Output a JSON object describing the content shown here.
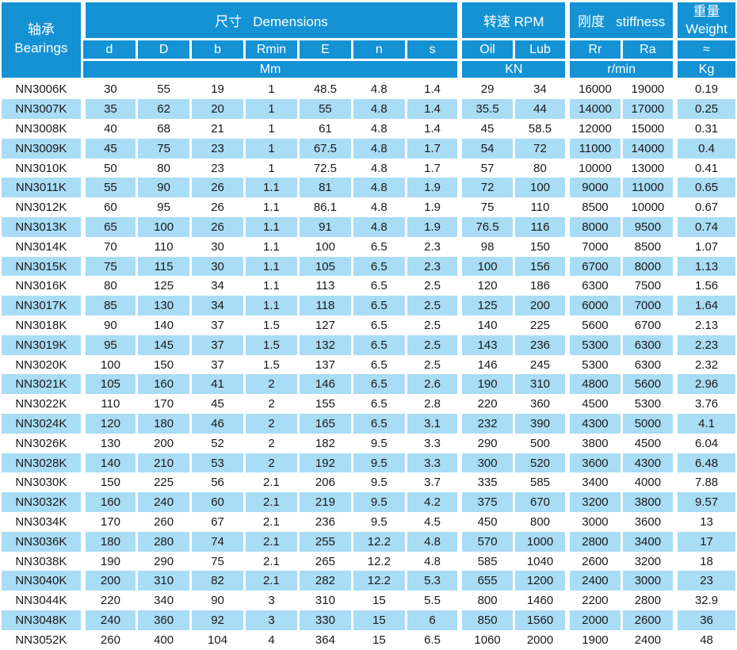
{
  "colors": {
    "header_blue": "#1492d4",
    "stripe_blue": "#a9dcf5",
    "text_dark": "#1a1a1a"
  },
  "table": {
    "bearing_header": {
      "zh": "轴承",
      "en": "Bearings"
    },
    "groups": {
      "dimensions": {
        "zh": "尺寸",
        "en": "Demensions",
        "unit": "Mm"
      },
      "rpm": {
        "zh": "转速",
        "en": "RPM",
        "unit": "KN"
      },
      "stiffness": {
        "zh": "刚度",
        "en": "stiffness",
        "unit": "r/min"
      },
      "weight": {
        "zh": "重量",
        "en": "Weight",
        "approx_symbol": "≈",
        "unit": "Kg"
      }
    },
    "columns": [
      "d",
      "D",
      "b",
      "Rmin",
      "E",
      "n",
      "s",
      "Oil",
      "Lub",
      "Rr",
      "Ra",
      "≈"
    ],
    "rows": [
      {
        "bearing": "NN3006K",
        "values": [
          "30",
          "55",
          "19",
          "1",
          "48.5",
          "4.8",
          "1.4",
          "29",
          "34",
          "16000",
          "19000",
          "0.19"
        ]
      },
      {
        "bearing": "NN3007K",
        "values": [
          "35",
          "62",
          "20",
          "1",
          "55",
          "4.8",
          "1.4",
          "35.5",
          "44",
          "14000",
          "17000",
          "0.25"
        ]
      },
      {
        "bearing": "NN3008K",
        "values": [
          "40",
          "68",
          "21",
          "1",
          "61",
          "4.8",
          "1.4",
          "45",
          "58.5",
          "12000",
          "15000",
          "0.31"
        ]
      },
      {
        "bearing": "NN3009K",
        "values": [
          "45",
          "75",
          "23",
          "1",
          "67.5",
          "4.8",
          "1.7",
          "54",
          "72",
          "11000",
          "14000",
          "0.4"
        ]
      },
      {
        "bearing": "NN3010K",
        "values": [
          "50",
          "80",
          "23",
          "1",
          "72.5",
          "4.8",
          "1.7",
          "57",
          "80",
          "10000",
          "13000",
          "0.41"
        ]
      },
      {
        "bearing": "NN3011K",
        "values": [
          "55",
          "90",
          "26",
          "1.1",
          "81",
          "4.8",
          "1.9",
          "72",
          "100",
          "9000",
          "11000",
          "0.65"
        ]
      },
      {
        "bearing": "NN3012K",
        "values": [
          "60",
          "95",
          "26",
          "1.1",
          "86.1",
          "4.8",
          "1.9",
          "75",
          "110",
          "8500",
          "10000",
          "0.67"
        ]
      },
      {
        "bearing": "NN3013K",
        "values": [
          "65",
          "100",
          "26",
          "1.1",
          "91",
          "4.8",
          "1.9",
          "76.5",
          "116",
          "8000",
          "9500",
          "0.74"
        ]
      },
      {
        "bearing": "NN3014K",
        "values": [
          "70",
          "110",
          "30",
          "1.1",
          "100",
          "6.5",
          "2.3",
          "98",
          "150",
          "7000",
          "8500",
          "1.07"
        ]
      },
      {
        "bearing": "NN3015K",
        "values": [
          "75",
          "115",
          "30",
          "1.1",
          "105",
          "6.5",
          "2.3",
          "100",
          "156",
          "6700",
          "8000",
          "1.13"
        ]
      },
      {
        "bearing": "NN3016K",
        "values": [
          "80",
          "125",
          "34",
          "1.1",
          "113",
          "6.5",
          "2.5",
          "120",
          "186",
          "6300",
          "7500",
          "1.56"
        ]
      },
      {
        "bearing": "NN3017K",
        "values": [
          "85",
          "130",
          "34",
          "1.1",
          "118",
          "6.5",
          "2.5",
          "125",
          "200",
          "6000",
          "7000",
          "1.64"
        ]
      },
      {
        "bearing": "NN3018K",
        "values": [
          "90",
          "140",
          "37",
          "1.5",
          "127",
          "6.5",
          "2.5",
          "140",
          "225",
          "5600",
          "6700",
          "2.13"
        ]
      },
      {
        "bearing": "NN3019K",
        "values": [
          "95",
          "145",
          "37",
          "1.5",
          "132",
          "6.5",
          "2.5",
          "143",
          "236",
          "5300",
          "6300",
          "2.23"
        ]
      },
      {
        "bearing": "NN3020K",
        "values": [
          "100",
          "150",
          "37",
          "1.5",
          "137",
          "6.5",
          "2.5",
          "146",
          "245",
          "5300",
          "6300",
          "2.32"
        ]
      },
      {
        "bearing": "NN3021K",
        "values": [
          "105",
          "160",
          "41",
          "2",
          "146",
          "6.5",
          "2.6",
          "190",
          "310",
          "4800",
          "5600",
          "2.96"
        ]
      },
      {
        "bearing": "NN3022K",
        "values": [
          "110",
          "170",
          "45",
          "2",
          "155",
          "6.5",
          "2.8",
          "220",
          "360",
          "4500",
          "5300",
          "3.76"
        ]
      },
      {
        "bearing": "NN3024K",
        "values": [
          "120",
          "180",
          "46",
          "2",
          "165",
          "6.5",
          "3.1",
          "232",
          "390",
          "4300",
          "5000",
          "4.1"
        ]
      },
      {
        "bearing": "NN3026K",
        "values": [
          "130",
          "200",
          "52",
          "2",
          "182",
          "9.5",
          "3.3",
          "290",
          "500",
          "3800",
          "4500",
          "6.04"
        ]
      },
      {
        "bearing": "NN3028K",
        "values": [
          "140",
          "210",
          "53",
          "2",
          "192",
          "9.5",
          "3.3",
          "300",
          "520",
          "3600",
          "4300",
          "6.48"
        ]
      },
      {
        "bearing": "NN3030K",
        "values": [
          "150",
          "225",
          "56",
          "2.1",
          "206",
          "9.5",
          "3.7",
          "335",
          "585",
          "3400",
          "4000",
          "7.88"
        ]
      },
      {
        "bearing": "NN3032K",
        "values": [
          "160",
          "240",
          "60",
          "2.1",
          "219",
          "9.5",
          "4.2",
          "375",
          "670",
          "3200",
          "3800",
          "9.57"
        ]
      },
      {
        "bearing": "NN3034K",
        "values": [
          "170",
          "260",
          "67",
          "2.1",
          "236",
          "9.5",
          "4.5",
          "450",
          "800",
          "3000",
          "3600",
          "13"
        ]
      },
      {
        "bearing": "NN3036K",
        "values": [
          "180",
          "280",
          "74",
          "2.1",
          "255",
          "12.2",
          "4.8",
          "570",
          "1000",
          "2800",
          "3400",
          "17"
        ]
      },
      {
        "bearing": "NN3038K",
        "values": [
          "190",
          "290",
          "75",
          "2.1",
          "265",
          "12.2",
          "4.8",
          "585",
          "1040",
          "2600",
          "3200",
          "18"
        ]
      },
      {
        "bearing": "NN3040K",
        "values": [
          "200",
          "310",
          "82",
          "2.1",
          "282",
          "12.2",
          "5.3",
          "655",
          "1200",
          "2400",
          "3000",
          "23"
        ]
      },
      {
        "bearing": "NN3044K",
        "values": [
          "220",
          "340",
          "90",
          "3",
          "310",
          "15",
          "5.5",
          "800",
          "1460",
          "2200",
          "2800",
          "32.9"
        ]
      },
      {
        "bearing": "NN3048K",
        "values": [
          "240",
          "360",
          "92",
          "3",
          "330",
          "15",
          "6",
          "850",
          "1560",
          "2000",
          "2600",
          "36"
        ]
      },
      {
        "bearing": "NN3052K",
        "values": [
          "260",
          "400",
          "104",
          "4",
          "364",
          "15",
          "6.5",
          "1060",
          "2000",
          "1900",
          "2400",
          "48"
        ]
      }
    ]
  }
}
